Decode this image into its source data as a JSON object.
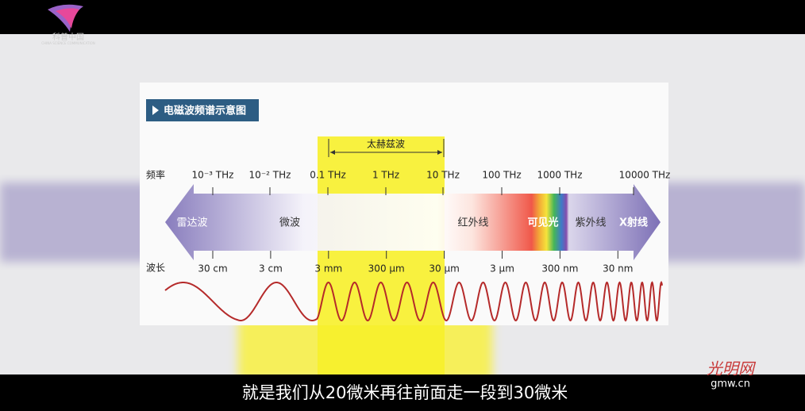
{
  "logo": {
    "name": "科普中国",
    "subtitle": "CHINA SCIENCE COMMUNICATION"
  },
  "diagram": {
    "title": "电磁波频谱示意图",
    "highlight_label": "太赫兹波",
    "frequency_label": "频率",
    "frequencies": [
      "10⁻³ THz",
      "10⁻² THz",
      "0.1 THz",
      "1 THz",
      "10 THz",
      "100 THz",
      "1000 THz",
      "10000 THz"
    ],
    "wavelength_label": "波长",
    "wavelengths": [
      "30 cm",
      "3 cm",
      "3 mm",
      "300 µm",
      "30 µm",
      "3 µm",
      "300 nm",
      "30 nm"
    ],
    "bands": [
      "雷达波",
      "微波",
      "红外线",
      "可见光",
      "紫外线",
      "X射线"
    ]
  },
  "subtitle": "就是我们从20微米再往前面走一段到30微米",
  "watermark": {
    "name": "光明网",
    "url": "gmw.cn"
  }
}
